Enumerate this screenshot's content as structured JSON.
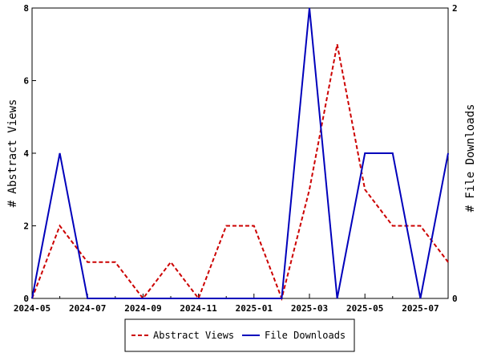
{
  "chart_data": {
    "type": "line",
    "x": [
      "2024-05",
      "2024-06",
      "2024-07",
      "2024-08",
      "2024-09",
      "2024-10",
      "2024-11",
      "2024-12",
      "2025-01",
      "2025-02",
      "2025-03",
      "2025-04",
      "2025-05",
      "2025-06",
      "2025-07",
      "2025-08"
    ],
    "x_tick_labels": [
      "2024-05",
      "2024-07",
      "2024-09",
      "2024-11",
      "2025-01",
      "2025-03",
      "2025-05",
      "2025-07"
    ],
    "y_left": {
      "label": "# Abstract Views",
      "range": [
        0,
        8
      ],
      "ticks": [
        0,
        2,
        4,
        6,
        8
      ]
    },
    "y_right": {
      "label": "# File Downloads",
      "range": [
        0,
        2
      ],
      "ticks": [
        0,
        2
      ]
    },
    "series": [
      {
        "name": "Abstract Views",
        "axis": "left",
        "color": "#cc0000",
        "style": "dashed",
        "values": [
          0,
          2,
          1,
          1,
          0,
          1,
          0,
          2,
          2,
          0,
          3,
          7,
          3,
          2,
          2,
          1
        ]
      },
      {
        "name": "File Downloads",
        "axis": "right",
        "color": "#0000bb",
        "style": "solid",
        "values": [
          0,
          1,
          0,
          0,
          0,
          0,
          0,
          0,
          0,
          0,
          2,
          0,
          1,
          1,
          0,
          1
        ]
      }
    ],
    "legend": {
      "placement": "bottom-center"
    },
    "grid": false
  }
}
